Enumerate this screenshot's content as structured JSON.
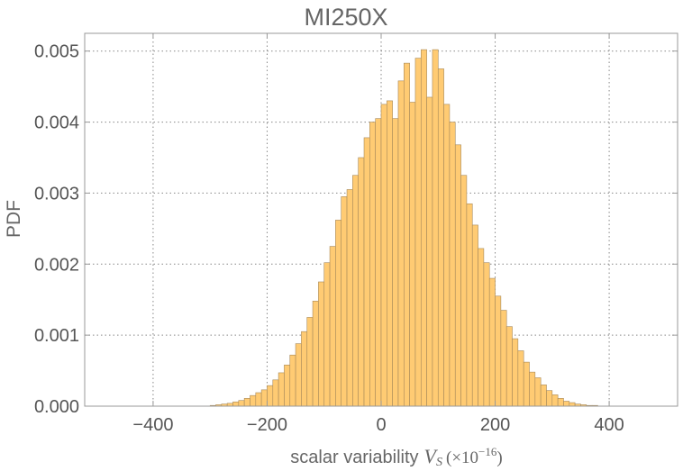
{
  "chart_data": {
    "type": "bar",
    "title": "MI250X",
    "ylabel": "PDF",
    "xlabel": {
      "text": "scalar variability",
      "symbol": "V",
      "subscript": "S",
      "unit_prefix": "(×10",
      "unit_exponent": "−16",
      "unit_suffix": ")"
    },
    "xlim": [
      -520,
      520
    ],
    "ylim": [
      0,
      0.00525
    ],
    "xticks": [
      {
        "value": -400,
        "label": "−400"
      },
      {
        "value": -200,
        "label": "−200"
      },
      {
        "value": 0,
        "label": "0"
      },
      {
        "value": 200,
        "label": "200"
      },
      {
        "value": 400,
        "label": "400"
      }
    ],
    "yticks": [
      {
        "value": 0,
        "label": "0.000"
      },
      {
        "value": 0.001,
        "label": "0.001"
      },
      {
        "value": 0.002,
        "label": "0.002"
      },
      {
        "value": 0.003,
        "label": "0.003"
      },
      {
        "value": 0.004,
        "label": "0.004"
      },
      {
        "value": 0.005,
        "label": "0.005"
      }
    ],
    "grid": true,
    "bin_start": -300,
    "bin_width": 10,
    "values": [
      1e-05,
      2e-05,
      3e-05,
      4e-05,
      6e-05,
      8e-05,
      0.00011,
      0.00015,
      0.00019,
      0.00023,
      0.00029,
      0.00037,
      0.00047,
      0.00058,
      0.00072,
      0.00088,
      0.00105,
      0.00125,
      0.00148,
      0.00175,
      0.00202,
      0.00225,
      0.00262,
      0.00295,
      0.00305,
      0.00325,
      0.0035,
      0.00378,
      0.004,
      0.00405,
      0.00425,
      0.0043,
      0.00405,
      0.00458,
      0.00483,
      0.00428,
      0.0049,
      0.00502,
      0.00435,
      0.00502,
      0.00475,
      0.00425,
      0.004,
      0.00368,
      0.00325,
      0.00285,
      0.00255,
      0.00222,
      0.00202,
      0.0018,
      0.00155,
      0.00135,
      0.00112,
      0.00095,
      0.00078,
      0.00062,
      0.00048,
      0.0004,
      0.0003,
      0.00022,
      0.00016,
      0.00011,
      7e-05,
      5e-05,
      3e-05,
      2e-05,
      1e-05,
      1e-05
    ],
    "bar_fill": "#FFCB73",
    "bar_stroke": "#A7895A"
  }
}
